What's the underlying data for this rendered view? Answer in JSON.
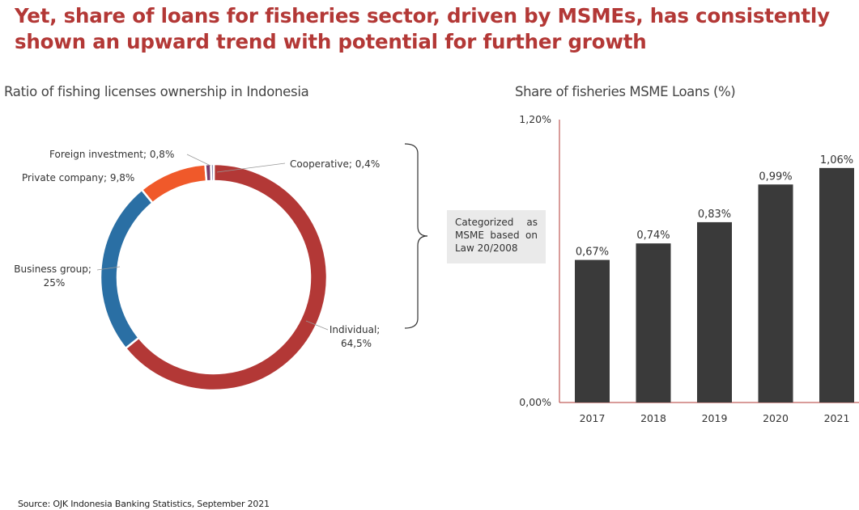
{
  "title": {
    "line1": "Yet, share of loans for fisheries sector, driven by MSMEs, has consistently",
    "line2": "shown an upward trend with potential for further growth"
  },
  "left_subtitle": "Ratio of fishing licenses ownership in Indonesia",
  "right_subtitle": "Share of fisheries MSME Loans (%)",
  "note": "Categorized as MSME based on Law 20/2008",
  "source": "Source: OJK Indonesia Banking Statistics, September 2021",
  "colors": {
    "title": "#b33836",
    "individual": "#b33836",
    "business_group": "#2a6fa4",
    "private_company": "#f0592a",
    "foreign_investment": "#7a3b6b",
    "cooperative": "#6d6d9c",
    "bar": "#3a3a3a",
    "axis": "#b33836"
  },
  "chart_data": [
    {
      "type": "pie",
      "variant": "donut",
      "title": "Ratio of fishing licenses ownership in Indonesia",
      "slices": [
        {
          "key": "individual",
          "label": "Individual; 64,5%",
          "value": 64.5
        },
        {
          "key": "business_group",
          "label": "Business group; 25%",
          "value": 25
        },
        {
          "key": "private_company",
          "label": "Private company; 9,8%",
          "value": 9.8
        },
        {
          "key": "foreign_investment",
          "label": "Foreign investment; 0,8%",
          "value": 0.8
        },
        {
          "key": "cooperative",
          "label": "Cooperative; 0,4%",
          "value": 0.4
        }
      ]
    },
    {
      "type": "bar",
      "title": "Share of fisheries MSME Loans (%)",
      "categories": [
        "2017",
        "2018",
        "2019",
        "2020",
        "2021"
      ],
      "values": [
        0.67,
        0.74,
        0.83,
        0.99,
        1.06
      ],
      "value_labels": [
        "0,67%",
        "0,74%",
        "0,83%",
        "0,99%",
        "1,06%"
      ],
      "ylim": [
        0,
        1.2
      ],
      "ytick_labels": [
        "0,00%",
        "1,20%"
      ],
      "grid": false,
      "note": "bars extend above the labelled value"
    }
  ]
}
